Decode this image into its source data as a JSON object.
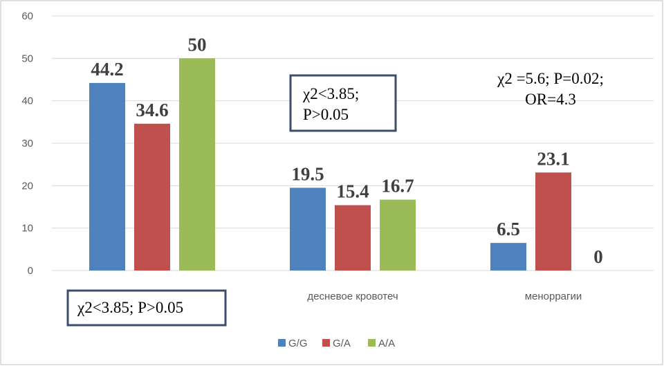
{
  "chart_data": {
    "type": "bar",
    "categories": [
      "",
      "десневое кровотеч",
      "меноррагии"
    ],
    "series": [
      {
        "name": "G/G",
        "values": [
          44.2,
          19.5,
          6.5
        ],
        "labels": [
          "44.2",
          "19.5",
          "6.5"
        ],
        "color": "#4F81BD"
      },
      {
        "name": "G/A",
        "values": [
          34.6,
          15.4,
          23.1
        ],
        "labels": [
          "34.6",
          "15.4",
          "23.1"
        ],
        "color": "#C0504D"
      },
      {
        "name": "A/A",
        "values": [
          50,
          16.7,
          0
        ],
        "labels": [
          "50",
          "16.7",
          "0"
        ],
        "color": "#9BBB59"
      }
    ],
    "y_ticks": [
      "0",
      "10",
      "20",
      "30",
      "40",
      "50",
      "60"
    ],
    "ylim": [
      0,
      60
    ],
    "grid": true,
    "legend_position": "bottom",
    "annotations": {
      "cat1_stat_line1": "χ2<3.85;",
      "cat1_stat_line2": "P>0.05",
      "cat2_stat_line1": "χ2 =5.6; P=0.02;",
      "cat2_stat_line2": "OR=4.3",
      "cat0_stat": "χ2<3.85; P>0.05"
    }
  },
  "colors": {
    "box_border": "#3A4E6B",
    "gridline": "#D9D9D9",
    "frame": "#BFBFBF"
  }
}
